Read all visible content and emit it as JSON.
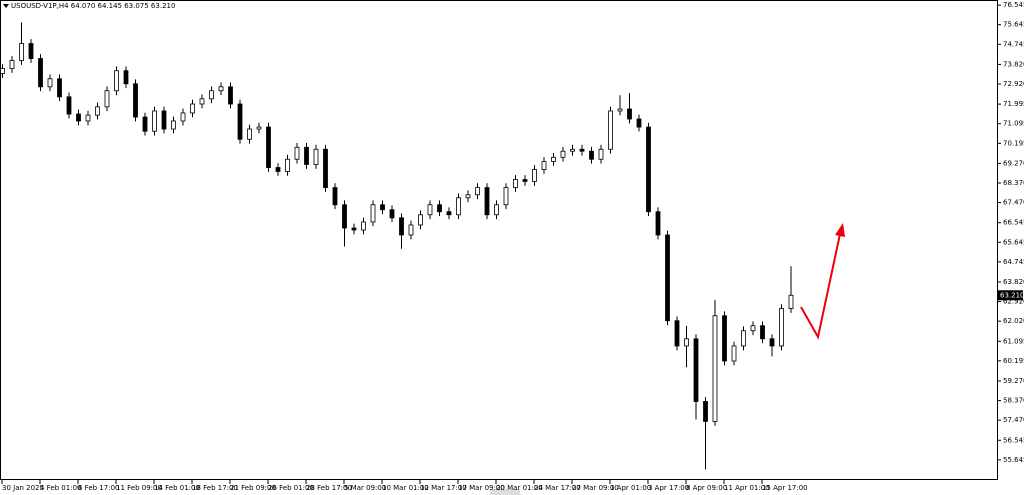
{
  "chart_data": {
    "type": "candlestick",
    "title": "USOUSD-V1P,H4 64.070 64.145 63.075 63.210",
    "categories": [
      "30 Jan 2025",
      null,
      null,
      null,
      "4 Feb 01:00",
      null,
      null,
      null,
      "6 Feb 17:00",
      null,
      null,
      null,
      "11 Feb 09:00",
      null,
      null,
      null,
      "14 Feb 01:00",
      null,
      null,
      null,
      "18 Feb 17:00",
      null,
      null,
      null,
      "21 Feb 09:00",
      null,
      null,
      null,
      "26 Feb 01:00",
      null,
      null,
      null,
      "28 Feb 17:00",
      null,
      null,
      null,
      "5 Mar 09:00",
      null,
      null,
      null,
      "10 Mar 01:00",
      null,
      null,
      null,
      "12 Mar 17:00",
      null,
      null,
      null,
      "17 Mar 09:00",
      null,
      null,
      null,
      "20 Mar 01:00",
      null,
      null,
      null,
      "24 Mar 17:00",
      null,
      null,
      null,
      "27 Mar 09:00",
      null,
      null,
      null,
      "1 Apr 01:00",
      null,
      null,
      null,
      "3 Apr 17:00",
      null,
      null,
      null,
      "8 Apr 09:00",
      null,
      null,
      null,
      "11 Apr 01:00",
      null,
      null,
      null,
      "15 Apr 17:00",
      null,
      null,
      null
    ],
    "open": [
      73.4,
      73.63,
      74.0,
      74.78,
      74.09,
      72.79,
      73.16,
      72.33,
      71.54,
      71.22,
      71.49,
      71.87,
      72.61,
      73.53,
      72.93,
      71.4,
      70.75,
      71.68,
      70.85,
      71.22,
      71.59,
      72.0,
      72.24,
      72.61,
      72.79,
      72.0,
      70.38,
      70.85,
      70.94,
      69.08,
      68.9,
      69.46,
      70.01,
      69.22,
      69.92,
      68.16,
      67.37,
      66.3,
      66.21,
      66.58,
      67.37,
      67.14,
      66.77,
      65.98,
      66.44,
      66.91,
      67.37,
      67.05,
      66.91,
      67.69,
      67.83,
      68.16,
      66.91,
      67.37,
      68.16,
      68.53,
      68.44,
      68.99,
      69.36,
      69.55,
      69.83,
      69.92,
      69.83,
      69.46,
      69.92,
      71.68,
      71.77,
      71.31,
      70.94,
      67.05,
      65.98,
      62.04,
      60.88,
      61.21,
      58.33,
      57.41,
      62.27,
      60.19,
      60.88,
      61.58,
      61.81,
      61.21,
      60.88,
      62.6
    ],
    "high": [
      73.83,
      74.2,
      75.75,
      74.98,
      74.29,
      73.36,
      73.36,
      72.53,
      71.74,
      71.69,
      72.07,
      72.81,
      73.73,
      73.73,
      73.13,
      71.6,
      71.88,
      71.88,
      71.42,
      71.79,
      72.2,
      72.44,
      72.81,
      72.99,
      72.99,
      72.2,
      71.05,
      71.14,
      71.14,
      69.28,
      69.66,
      70.21,
      70.21,
      70.12,
      70.12,
      68.36,
      67.57,
      66.5,
      66.78,
      67.57,
      67.57,
      67.34,
      66.97,
      66.64,
      67.11,
      67.57,
      67.57,
      67.25,
      67.89,
      68.03,
      68.36,
      68.36,
      67.57,
      68.36,
      68.73,
      68.73,
      69.19,
      69.56,
      69.75,
      70.03,
      70.12,
      70.12,
      70.03,
      70.12,
      71.88,
      72.4,
      72.5,
      71.51,
      71.14,
      67.25,
      66.18,
      62.24,
      61.8,
      61.41,
      58.53,
      63.0,
      62.47,
      61.08,
      61.78,
      62.01,
      62.01,
      61.41,
      62.8,
      64.55
    ],
    "low": [
      73.2,
      73.43,
      73.8,
      73.89,
      72.59,
      72.59,
      72.13,
      71.34,
      71.02,
      71.02,
      71.29,
      71.67,
      72.41,
      72.73,
      71.2,
      70.55,
      70.55,
      70.65,
      70.65,
      71.02,
      71.39,
      71.8,
      72.04,
      72.41,
      71.8,
      70.18,
      70.18,
      70.65,
      68.88,
      68.7,
      68.7,
      69.26,
      69.02,
      69.02,
      67.96,
      67.17,
      65.45,
      66.01,
      66.01,
      66.38,
      66.94,
      66.57,
      65.35,
      65.78,
      66.24,
      66.71,
      66.85,
      66.71,
      66.71,
      67.49,
      67.63,
      66.71,
      66.71,
      67.17,
      67.96,
      68.24,
      68.24,
      68.79,
      69.16,
      69.35,
      69.63,
      69.63,
      69.26,
      69.26,
      69.72,
      71.48,
      71.11,
      70.74,
      66.85,
      65.78,
      61.84,
      60.68,
      59.9,
      57.5,
      55.2,
      57.21,
      59.99,
      59.99,
      60.68,
      61.38,
      61.01,
      60.4,
      60.68,
      62.4
    ],
    "close": [
      73.63,
      74.0,
      74.78,
      74.09,
      72.79,
      73.16,
      72.33,
      71.54,
      71.22,
      71.49,
      71.87,
      72.61,
      73.53,
      72.93,
      71.4,
      70.75,
      71.68,
      70.85,
      71.22,
      71.59,
      72.0,
      72.24,
      72.61,
      72.79,
      72.0,
      70.38,
      70.85,
      70.94,
      69.08,
      68.9,
      69.46,
      70.01,
      69.22,
      69.92,
      68.16,
      67.37,
      66.3,
      66.21,
      66.58,
      67.37,
      67.14,
      66.77,
      65.98,
      66.44,
      66.91,
      67.37,
      67.05,
      66.91,
      67.69,
      67.83,
      68.16,
      66.91,
      67.37,
      68.16,
      68.53,
      68.44,
      68.99,
      69.36,
      69.55,
      69.83,
      69.92,
      69.83,
      69.46,
      69.92,
      71.68,
      71.77,
      71.31,
      70.94,
      67.05,
      65.98,
      62.04,
      60.88,
      61.21,
      58.33,
      57.41,
      62.27,
      60.19,
      60.88,
      61.58,
      61.81,
      61.21,
      60.88,
      62.6,
      63.21
    ],
    "up_color": "#ffffff",
    "down_color": "#000000",
    "wick_color": "#000000",
    "current_price": {
      "value": 63.21,
      "label": "63.210"
    },
    "ylim": [
      54.72,
      76.78
    ],
    "yticks": [
      76.545,
      75.645,
      74.745,
      {
        "value": 73.82,
        "label": "73.820"
      },
      {
        "value": 72.92,
        "label": "72.920"
      },
      71.995,
      71.095,
      70.195,
      {
        "value": 69.27,
        "label": "69.270"
      },
      {
        "value": 68.37,
        "label": "68.370"
      },
      {
        "value": 67.47,
        "label": "67.470"
      },
      66.545,
      65.645,
      64.745,
      {
        "value": 63.82,
        "label": "63.820"
      },
      {
        "value": 62.92,
        "label": "62.920"
      },
      {
        "value": 62.02,
        "label": "62.020"
      },
      61.095,
      60.195,
      {
        "value": 59.27,
        "label": "59.270"
      },
      {
        "value": 58.37,
        "label": "58.370"
      },
      {
        "value": 57.47,
        "label": "57.470"
      },
      56.545,
      55.645
    ],
    "grid": false
  }
}
